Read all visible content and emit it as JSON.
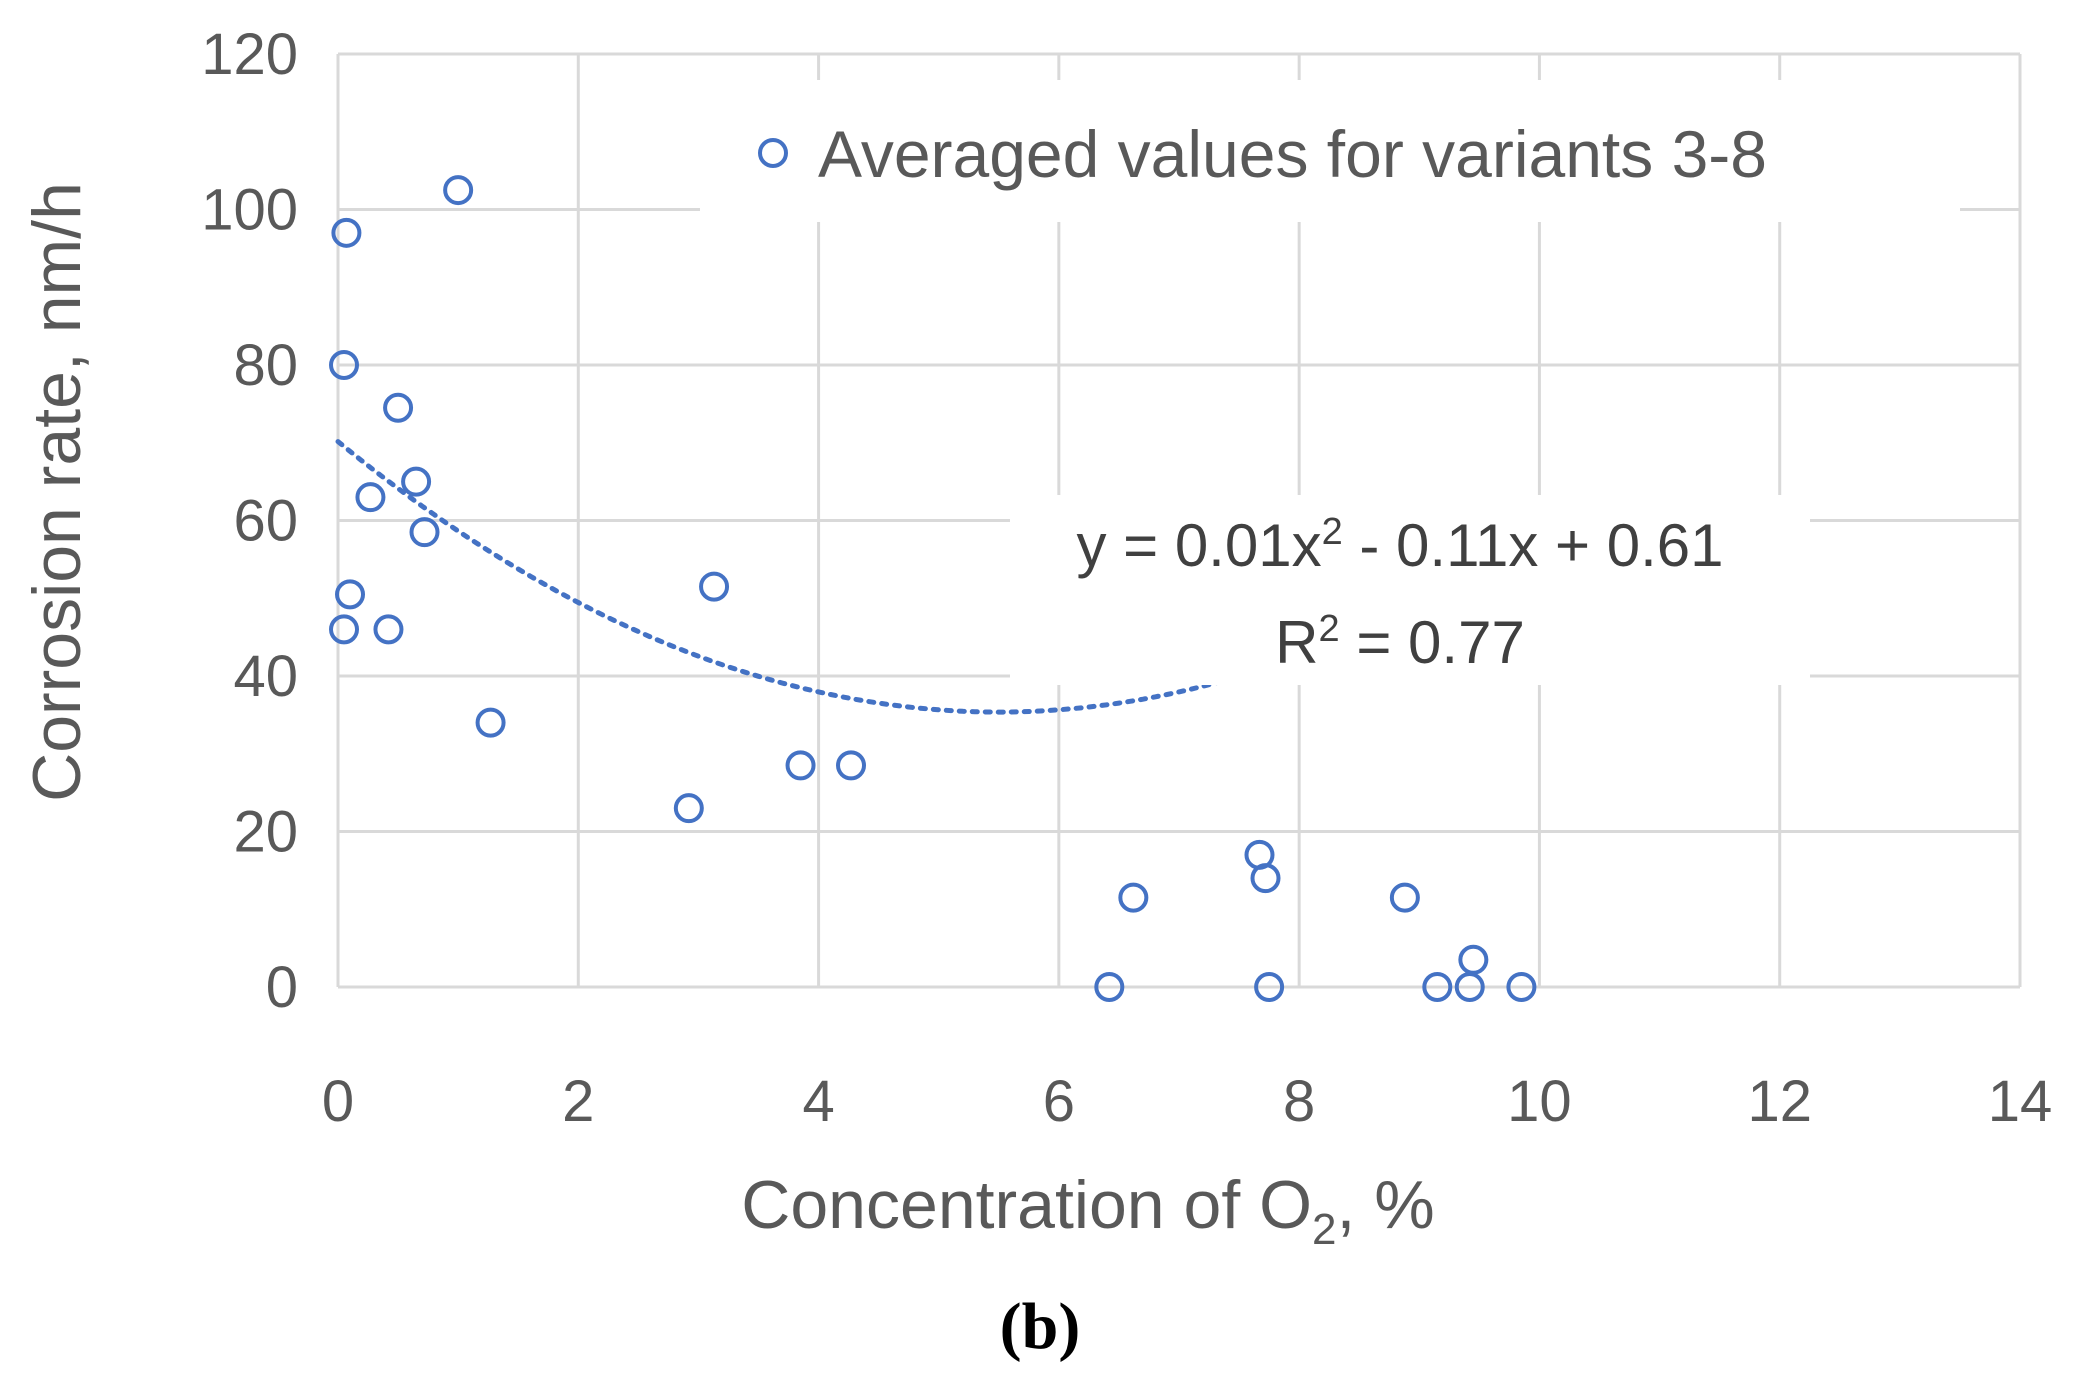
{
  "chart_data": {
    "type": "scatter",
    "xlabel": "Concentration of O",
    "xlabel_subscript": "2",
    "xlabel_suffix": ", %",
    "ylabel": "Corrosion rate, nm/h",
    "xlim": [
      0,
      14
    ],
    "ylim": [
      0,
      120
    ],
    "x_ticks": [
      "0",
      "2",
      "4",
      "6",
      "8",
      "10",
      "12",
      "14"
    ],
    "y_ticks": [
      "0",
      "20",
      "40",
      "60",
      "80",
      "100",
      "120"
    ],
    "grid": true,
    "legend_position": "top-right",
    "series": [
      {
        "name": "Averaged values for variants 3-8",
        "color": "#4472c4",
        "marker": "hollow-circle",
        "points": [
          [
            0.07,
            97
          ],
          [
            0.05,
            80
          ],
          [
            0.1,
            50.5
          ],
          [
            0.05,
            46
          ],
          [
            0.27,
            63
          ],
          [
            0.5,
            74.5
          ],
          [
            0.65,
            65
          ],
          [
            0.72,
            58.5
          ],
          [
            0.42,
            46
          ],
          [
            1.0,
            102.5
          ],
          [
            1.27,
            34
          ],
          [
            2.92,
            23
          ],
          [
            3.13,
            51.5
          ],
          [
            3.85,
            28.5
          ],
          [
            4.27,
            28.5
          ],
          [
            6.42,
            0
          ],
          [
            6.62,
            11.5
          ],
          [
            7.67,
            17
          ],
          [
            7.72,
            14
          ],
          [
            7.75,
            0
          ],
          [
            8.88,
            11.5
          ],
          [
            9.15,
            0
          ],
          [
            9.42,
            0
          ],
          [
            9.45,
            3.5
          ],
          [
            9.85,
            0
          ]
        ]
      }
    ],
    "trendline": {
      "type": "polynomial",
      "order": 2,
      "coefficients": [
        0.61,
        -0.11,
        0.01
      ],
      "display_scale": 115,
      "x_range": [
        0,
        10
      ],
      "equation_prefix": "y = 0.01x",
      "equation_power": "2",
      "equation_suffix": " - 0.11x + 0.61",
      "r2_prefix": "R",
      "r2_power": "2",
      "r2_suffix": " = 0.77"
    }
  },
  "caption": "(b)"
}
